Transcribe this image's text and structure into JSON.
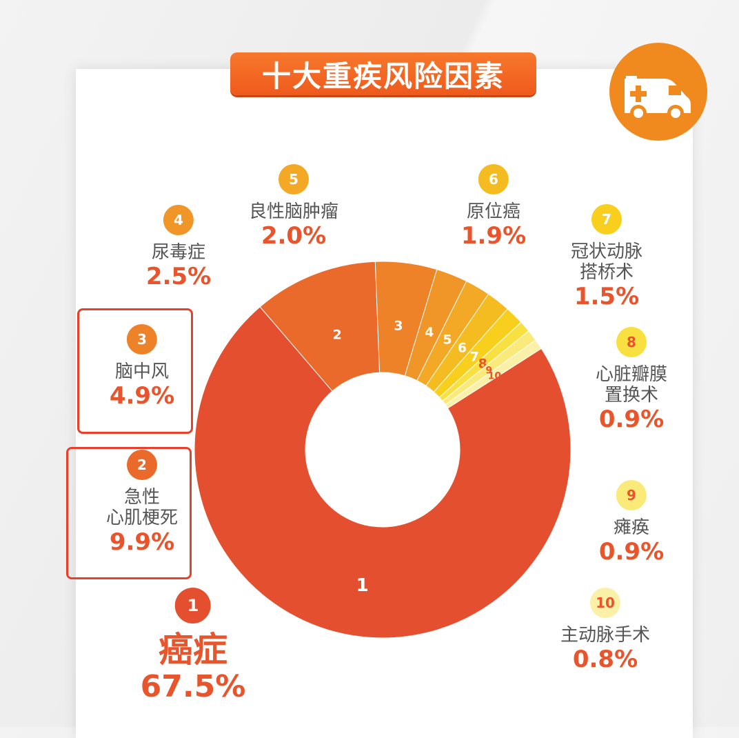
{
  "title": "十大重疾风险因素",
  "icon": "ambulance-icon",
  "colors": {
    "accent": "#e8542b",
    "title_bg": "#f26b22",
    "highlight_box": "#e8402a"
  },
  "chart_data": {
    "type": "pie",
    "donut": true,
    "title": "十大重疾风险因素",
    "slices": [
      {
        "rank": "1",
        "name": "癌症",
        "value": 67.5,
        "label": "67.5%",
        "color": "#e4502f"
      },
      {
        "rank": "2",
        "name": "急性\n心肌梗死",
        "value": 9.9,
        "label": "9.9%",
        "color": "#ea6a2c"
      },
      {
        "rank": "3",
        "name": "脑中风",
        "value": 4.9,
        "label": "4.9%",
        "color": "#ee8229"
      },
      {
        "rank": "4",
        "name": "尿毒症",
        "value": 2.5,
        "label": "2.5%",
        "color": "#f09527"
      },
      {
        "rank": "5",
        "name": "良性脑肿瘤",
        "value": 2.0,
        "label": "2.0%",
        "color": "#f3a926"
      },
      {
        "rank": "6",
        "name": "原位癌",
        "value": 1.9,
        "label": "1.9%",
        "color": "#f5bc22"
      },
      {
        "rank": "7",
        "name": "冠状动脉\n搭桥术",
        "value": 1.5,
        "label": "1.5%",
        "color": "#f8cf1d"
      },
      {
        "rank": "8",
        "name": "心脏瓣膜\n置换术",
        "value": 0.9,
        "label": "0.9%",
        "color": "#f8e040"
      },
      {
        "rank": "9",
        "name": "瘫痪",
        "value": 0.9,
        "label": "0.9%",
        "color": "#faea7a"
      },
      {
        "rank": "10",
        "name": "主动脉手术",
        "value": 0.8,
        "label": "0.8%",
        "color": "#fbf0a8"
      }
    ],
    "highlighted_ranks": [
      "2",
      "3"
    ]
  }
}
